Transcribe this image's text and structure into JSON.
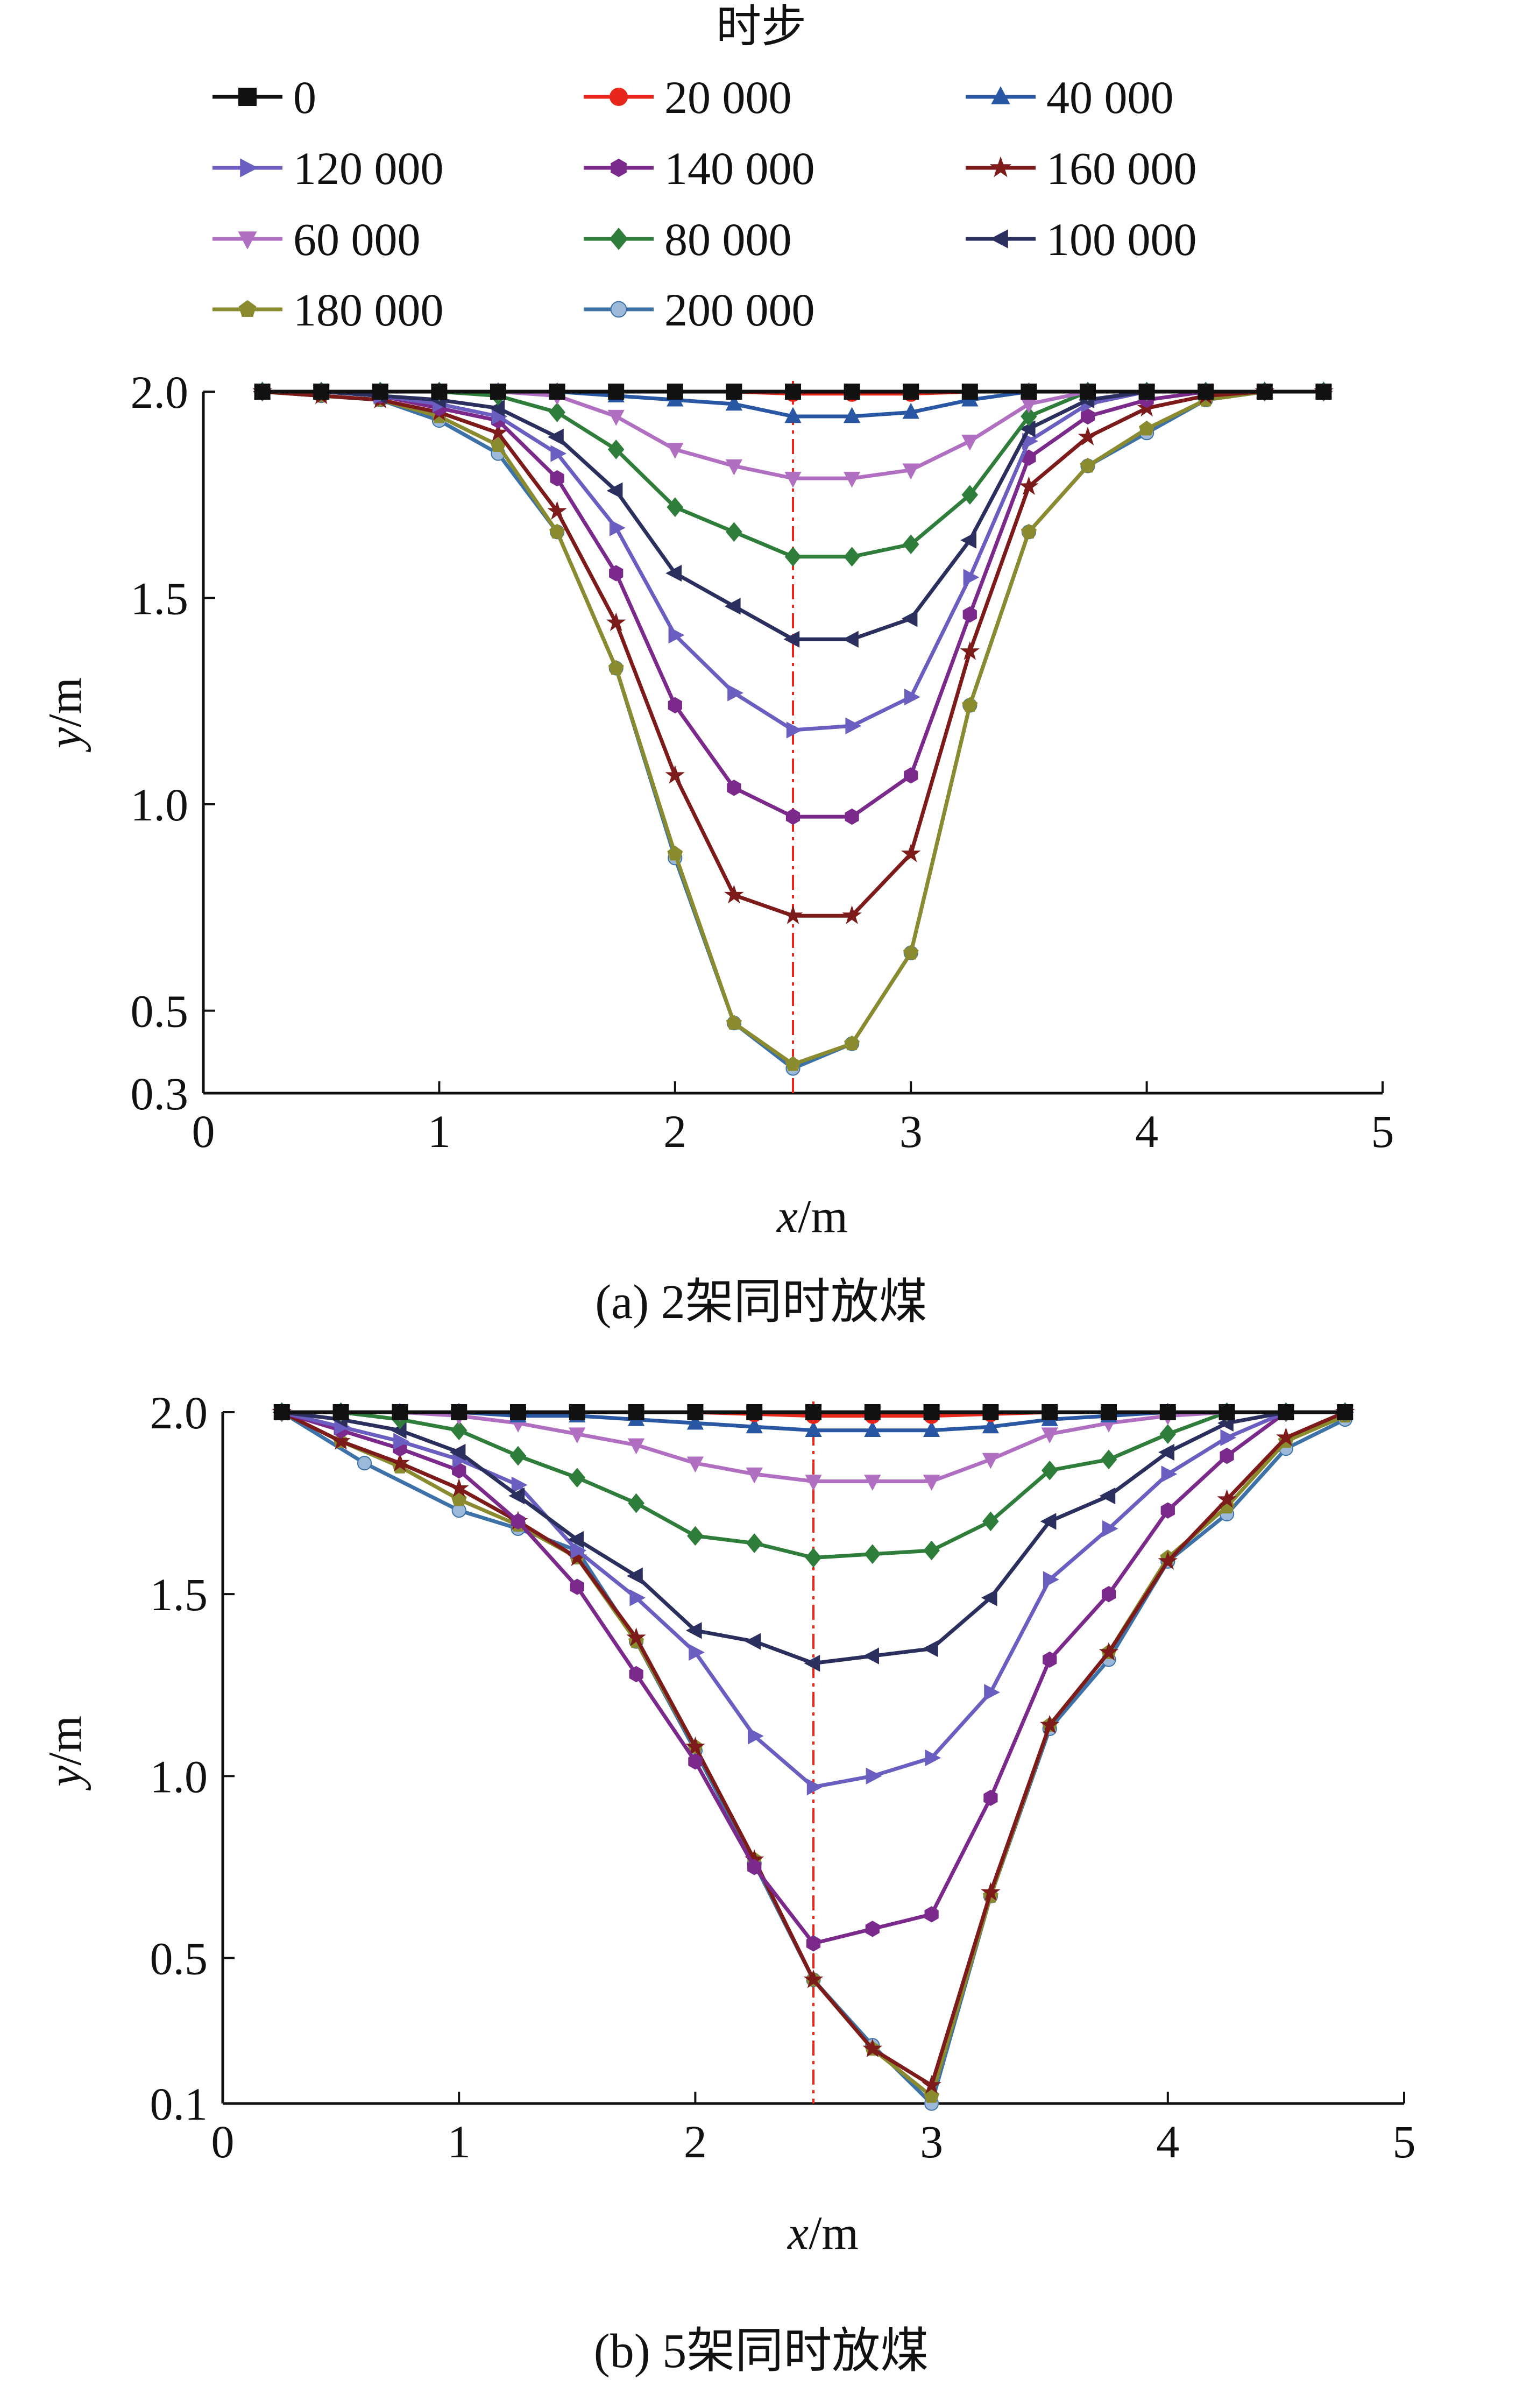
{
  "legend": {
    "title": "时步",
    "entries": [
      {
        "label": "0",
        "color": "#111111",
        "marker": "square"
      },
      {
        "label": "20 000",
        "color": "#e8261c",
        "marker": "circle"
      },
      {
        "label": "40 000",
        "color": "#2957a4",
        "marker": "triangle-up"
      },
      {
        "label": "120 000",
        "color": "#6a5fc0",
        "marker": "triangle-right"
      },
      {
        "label": "140 000",
        "color": "#7b2a8c",
        "marker": "hexagon"
      },
      {
        "label": "160 000",
        "color": "#7d1a1a",
        "marker": "star"
      },
      {
        "label": "60 000",
        "color": "#b06fc0",
        "marker": "triangle-down"
      },
      {
        "label": "80 000",
        "color": "#2f7d3a",
        "marker": "diamond"
      },
      {
        "label": "100 000",
        "color": "#2b2f5e",
        "marker": "triangle-left"
      },
      {
        "label": "180 000",
        "color": "#8a8a2e",
        "marker": "pentagon"
      },
      {
        "label": "200 000",
        "color": "#3d72a8",
        "marker": "circle-small"
      }
    ]
  },
  "chart_data": [
    {
      "type": "line",
      "caption": "(a)  2架同时放煤",
      "xlabel_var": "x",
      "xlabel_unit": "/m",
      "ylabel_var": "y",
      "ylabel_unit": "/m",
      "xlim": [
        0,
        5
      ],
      "ylim": [
        0.3,
        2.0
      ],
      "xticks": [
        0,
        1,
        2,
        3,
        4,
        5
      ],
      "yticks": [
        0.3,
        0.5,
        1.0,
        1.5,
        2.0
      ],
      "xtick_labels": [
        "0",
        "1",
        "2",
        "3",
        "4",
        "5"
      ],
      "ytick_labels": [
        "0.3",
        "0.5",
        "1.0",
        "1.5",
        "2.0"
      ],
      "center_line_x": 2.5,
      "series": [
        {
          "name": "0",
          "x": [
            0.25,
            0.5,
            0.75,
            1.0,
            1.25,
            1.5,
            1.75,
            2.0,
            2.25,
            2.5,
            2.75,
            3.0,
            3.25,
            3.5,
            3.75,
            4.0,
            4.25,
            4.5,
            4.75
          ],
          "y": [
            2.0,
            2.0,
            2.0,
            2.0,
            2.0,
            2.0,
            2.0,
            2.0,
            2.0,
            2.0,
            2.0,
            2.0,
            2.0,
            2.0,
            2.0,
            2.0,
            2.0,
            2.0,
            2.0
          ]
        },
        {
          "name": "20 000",
          "x": [
            0.25,
            0.5,
            0.75,
            1.0,
            1.25,
            1.5,
            1.75,
            2.0,
            2.25,
            2.5,
            2.75,
            3.0,
            3.25,
            3.5,
            3.75,
            4.0,
            4.25,
            4.5,
            4.75
          ],
          "y": [
            2.0,
            2.0,
            2.0,
            2.0,
            2.0,
            2.0,
            2.0,
            2.0,
            2.0,
            1.995,
            1.995,
            1.995,
            2.0,
            2.0,
            2.0,
            2.0,
            2.0,
            2.0,
            2.0
          ]
        },
        {
          "name": "40 000",
          "x": [
            0.25,
            0.5,
            0.75,
            1.0,
            1.25,
            1.5,
            1.75,
            2.0,
            2.25,
            2.5,
            2.75,
            3.0,
            3.25,
            3.5,
            3.75,
            4.0,
            4.25,
            4.5,
            4.75
          ],
          "y": [
            2.0,
            2.0,
            2.0,
            2.0,
            2.0,
            2.0,
            1.99,
            1.98,
            1.97,
            1.94,
            1.94,
            1.95,
            1.98,
            2.0,
            2.0,
            2.0,
            2.0,
            2.0,
            2.0
          ]
        },
        {
          "name": "60 000",
          "x": [
            0.25,
            0.5,
            0.75,
            1.0,
            1.25,
            1.5,
            1.75,
            2.0,
            2.25,
            2.5,
            2.75,
            3.0,
            3.25,
            3.5,
            3.75,
            4.0,
            4.25,
            4.5,
            4.75
          ],
          "y": [
            2.0,
            2.0,
            2.0,
            2.0,
            2.0,
            1.99,
            1.94,
            1.86,
            1.82,
            1.79,
            1.79,
            1.81,
            1.88,
            1.97,
            2.0,
            2.0,
            2.0,
            2.0,
            2.0
          ]
        },
        {
          "name": "80 000",
          "x": [
            0.25,
            0.5,
            0.75,
            1.0,
            1.25,
            1.5,
            1.75,
            2.0,
            2.25,
            2.5,
            2.75,
            3.0,
            3.25,
            3.5,
            3.75,
            4.0,
            4.25,
            4.5,
            4.75
          ],
          "y": [
            2.0,
            2.0,
            2.0,
            2.0,
            1.99,
            1.95,
            1.86,
            1.72,
            1.66,
            1.6,
            1.6,
            1.63,
            1.75,
            1.94,
            2.0,
            2.0,
            2.0,
            2.0,
            2.0
          ]
        },
        {
          "name": "100 000",
          "x": [
            0.25,
            0.5,
            0.75,
            1.0,
            1.25,
            1.5,
            1.75,
            2.0,
            2.25,
            2.5,
            2.75,
            3.0,
            3.25,
            3.5,
            3.75,
            4.0,
            4.25,
            4.5,
            4.75
          ],
          "y": [
            2.0,
            2.0,
            1.99,
            1.98,
            1.96,
            1.89,
            1.76,
            1.56,
            1.48,
            1.4,
            1.4,
            1.45,
            1.64,
            1.91,
            1.98,
            2.0,
            2.0,
            2.0,
            2.0
          ]
        },
        {
          "name": "120 000",
          "x": [
            0.25,
            0.5,
            0.75,
            1.0,
            1.25,
            1.5,
            1.75,
            2.0,
            2.25,
            2.5,
            2.75,
            3.0,
            3.25,
            3.5,
            3.75,
            4.0,
            4.25,
            4.5,
            4.75
          ],
          "y": [
            2.0,
            2.0,
            1.99,
            1.97,
            1.94,
            1.85,
            1.67,
            1.41,
            1.27,
            1.18,
            1.19,
            1.26,
            1.55,
            1.88,
            1.97,
            2.0,
            2.0,
            2.0,
            2.0
          ]
        },
        {
          "name": "140 000",
          "x": [
            0.25,
            0.5,
            0.75,
            1.0,
            1.25,
            1.5,
            1.75,
            2.0,
            2.25,
            2.5,
            2.75,
            3.0,
            3.25,
            3.5,
            3.75,
            4.0,
            4.25,
            4.5,
            4.75
          ],
          "y": [
            2.0,
            2.0,
            1.99,
            1.96,
            1.93,
            1.79,
            1.56,
            1.24,
            1.04,
            0.97,
            0.97,
            1.07,
            1.46,
            1.84,
            1.94,
            1.98,
            2.0,
            2.0,
            2.0
          ]
        },
        {
          "name": "160 000",
          "x": [
            0.25,
            0.5,
            0.75,
            1.0,
            1.25,
            1.5,
            1.75,
            2.0,
            2.25,
            2.5,
            2.75,
            3.0,
            3.25,
            3.5,
            3.75,
            4.0,
            4.25,
            4.5,
            4.75
          ],
          "y": [
            2.0,
            1.99,
            1.98,
            1.95,
            1.9,
            1.71,
            1.44,
            1.07,
            0.78,
            0.73,
            0.73,
            0.88,
            1.37,
            1.77,
            1.89,
            1.96,
            1.99,
            2.0,
            2.0
          ]
        },
        {
          "name": "180 000",
          "x": [
            0.25,
            0.5,
            0.75,
            1.0,
            1.25,
            1.5,
            1.75,
            2.0,
            2.25,
            2.5,
            2.75,
            3.0,
            3.25,
            3.5,
            3.75,
            4.0,
            4.25,
            4.5,
            4.75
          ],
          "y": [
            2.0,
            1.99,
            1.98,
            1.94,
            1.87,
            1.66,
            1.33,
            0.88,
            0.47,
            0.37,
            0.42,
            0.64,
            1.24,
            1.66,
            1.82,
            1.91,
            1.98,
            2.0,
            2.0
          ]
        },
        {
          "name": "200 000",
          "x": [
            0.25,
            0.5,
            0.75,
            1.0,
            1.25,
            1.5,
            1.75,
            2.0,
            2.25,
            2.5,
            2.75,
            3.0,
            3.25,
            3.5,
            3.75,
            4.0,
            4.25,
            4.5,
            4.75
          ],
          "y": [
            2.0,
            1.99,
            1.98,
            1.93,
            1.85,
            1.66,
            1.33,
            0.87,
            0.47,
            0.36,
            0.42,
            0.64,
            1.24,
            1.66,
            1.82,
            1.9,
            1.98,
            2.0,
            2.0
          ]
        }
      ]
    },
    {
      "type": "line",
      "caption": "(b)  5架同时放煤",
      "xlabel_var": "x",
      "xlabel_unit": "/m",
      "ylabel_var": "y",
      "ylabel_unit": "/m",
      "xlim": [
        0,
        5
      ],
      "ylim": [
        0.1,
        2.0
      ],
      "xticks": [
        0,
        1,
        2,
        3,
        4,
        5
      ],
      "yticks": [
        0.1,
        0.5,
        1.0,
        1.5,
        2.0
      ],
      "xtick_labels": [
        "0",
        "1",
        "2",
        "3",
        "4",
        "5"
      ],
      "ytick_labels": [
        "0.1",
        "0.5",
        "1.0",
        "1.5",
        "2.0"
      ],
      "center_line_x": 2.5,
      "series": [
        {
          "name": "0",
          "x": [
            0.25,
            0.5,
            0.75,
            1.0,
            1.25,
            1.5,
            1.75,
            2.0,
            2.25,
            2.5,
            2.75,
            3.0,
            3.25,
            3.5,
            3.75,
            4.0,
            4.25,
            4.5,
            4.75
          ],
          "y": [
            2.0,
            2.0,
            2.0,
            2.0,
            2.0,
            2.0,
            2.0,
            2.0,
            2.0,
            2.0,
            2.0,
            2.0,
            2.0,
            2.0,
            2.0,
            2.0,
            2.0,
            2.0,
            2.0
          ]
        },
        {
          "name": "20 000",
          "x": [
            0.25,
            0.5,
            0.75,
            1.0,
            1.25,
            1.5,
            1.75,
            2.0,
            2.25,
            2.5,
            2.75,
            3.0,
            3.25,
            3.5,
            3.75,
            4.0,
            4.25,
            4.5,
            4.75
          ],
          "y": [
            2.0,
            2.0,
            2.0,
            2.0,
            2.0,
            2.0,
            2.0,
            2.0,
            1.995,
            1.99,
            1.99,
            1.99,
            1.995,
            2.0,
            2.0,
            2.0,
            2.0,
            2.0,
            2.0
          ]
        },
        {
          "name": "40 000",
          "x": [
            0.25,
            0.5,
            0.75,
            1.0,
            1.25,
            1.5,
            1.75,
            2.0,
            2.25,
            2.5,
            2.75,
            3.0,
            3.25,
            3.5,
            3.75,
            4.0,
            4.25,
            4.5,
            4.75
          ],
          "y": [
            2.0,
            2.0,
            2.0,
            2.0,
            1.99,
            1.99,
            1.98,
            1.97,
            1.96,
            1.95,
            1.95,
            1.95,
            1.96,
            1.98,
            1.99,
            2.0,
            2.0,
            2.0,
            2.0
          ]
        },
        {
          "name": "60 000",
          "x": [
            0.25,
            0.5,
            0.75,
            1.0,
            1.25,
            1.5,
            1.75,
            2.0,
            2.25,
            2.5,
            2.75,
            3.0,
            3.25,
            3.5,
            3.75,
            4.0,
            4.25,
            4.5,
            4.75
          ],
          "y": [
            2.0,
            2.0,
            2.0,
            1.99,
            1.97,
            1.94,
            1.91,
            1.86,
            1.83,
            1.81,
            1.81,
            1.81,
            1.87,
            1.94,
            1.97,
            1.99,
            2.0,
            2.0,
            2.0
          ]
        },
        {
          "name": "80 000",
          "x": [
            0.25,
            0.5,
            0.75,
            1.0,
            1.25,
            1.5,
            1.75,
            2.0,
            2.25,
            2.5,
            2.75,
            3.0,
            3.25,
            3.5,
            3.75,
            4.0,
            4.25,
            4.5,
            4.75
          ],
          "y": [
            2.0,
            2.0,
            1.98,
            1.95,
            1.88,
            1.82,
            1.75,
            1.66,
            1.64,
            1.6,
            1.61,
            1.62,
            1.7,
            1.84,
            1.87,
            1.94,
            2.0,
            2.0,
            2.0
          ]
        },
        {
          "name": "100 000",
          "x": [
            0.25,
            0.5,
            0.75,
            1.0,
            1.25,
            1.5,
            1.75,
            2.0,
            2.25,
            2.5,
            2.75,
            3.0,
            3.25,
            3.5,
            3.75,
            4.0,
            4.25,
            4.5,
            4.75
          ],
          "y": [
            2.0,
            1.98,
            1.95,
            1.89,
            1.77,
            1.65,
            1.55,
            1.4,
            1.37,
            1.31,
            1.33,
            1.35,
            1.49,
            1.7,
            1.77,
            1.89,
            1.97,
            2.0,
            2.0
          ]
        },
        {
          "name": "120 000",
          "x": [
            0.25,
            0.5,
            0.75,
            1.0,
            1.25,
            1.5,
            1.75,
            2.0,
            2.25,
            2.5,
            2.75,
            3.0,
            3.25,
            3.5,
            3.75,
            4.0,
            4.25,
            4.5,
            4.75
          ],
          "y": [
            2.0,
            1.96,
            1.92,
            1.87,
            1.8,
            1.62,
            1.49,
            1.34,
            1.11,
            0.97,
            1.0,
            1.05,
            1.23,
            1.54,
            1.68,
            1.83,
            1.93,
            2.0,
            2.0
          ]
        },
        {
          "name": "140 000",
          "x": [
            0.25,
            0.5,
            0.75,
            1.0,
            1.25,
            1.5,
            1.75,
            2.0,
            2.25,
            2.5,
            2.75,
            3.0,
            3.25,
            3.5,
            3.75,
            4.0,
            4.25,
            4.5,
            4.75
          ],
          "y": [
            2.0,
            1.95,
            1.9,
            1.84,
            1.7,
            1.52,
            1.28,
            1.04,
            0.75,
            0.54,
            0.58,
            0.62,
            0.94,
            1.32,
            1.5,
            1.73,
            1.88,
            2.0,
            2.0
          ]
        },
        {
          "name": "160 000",
          "x": [
            0.25,
            0.5,
            0.75,
            1.0,
            1.25,
            1.5,
            1.75,
            2.0,
            2.25,
            2.5,
            2.75,
            3.0,
            3.25,
            3.5,
            3.75,
            4.0,
            4.25,
            4.5,
            4.75
          ],
          "y": [
            2.0,
            1.92,
            1.86,
            1.79,
            1.7,
            1.6,
            1.38,
            1.08,
            0.77,
            0.44,
            0.25,
            0.15,
            0.68,
            1.14,
            1.34,
            1.59,
            1.76,
            1.93,
            2.0
          ]
        },
        {
          "name": "180 000",
          "x": [
            0.25,
            0.5,
            0.75,
            1.0,
            1.25,
            1.5,
            1.75,
            2.0,
            2.25,
            2.5,
            2.75,
            3.0,
            3.25,
            3.5,
            3.75,
            4.0,
            4.25,
            4.5,
            4.75
          ],
          "y": [
            2.0,
            1.92,
            1.85,
            1.76,
            1.69,
            1.6,
            1.37,
            1.08,
            0.77,
            0.44,
            0.25,
            0.12,
            0.67,
            1.14,
            1.34,
            1.6,
            1.74,
            1.92,
            1.99
          ]
        },
        {
          "name": "200 000",
          "x": [
            0.25,
            0.6,
            1.0,
            1.25,
            1.5,
            1.75,
            2.0,
            2.25,
            2.5,
            2.75,
            3.0,
            3.25,
            3.5,
            3.75,
            4.0,
            4.25,
            4.5,
            4.75
          ],
          "y": [
            2.0,
            1.86,
            1.73,
            1.68,
            1.62,
            1.37,
            1.07,
            0.76,
            0.44,
            0.26,
            0.1,
            0.67,
            1.13,
            1.32,
            1.59,
            1.72,
            1.9,
            1.98
          ]
        }
      ]
    }
  ]
}
